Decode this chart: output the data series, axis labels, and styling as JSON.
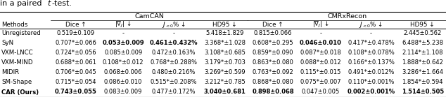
{
  "title_text": "in a paired ",
  "title_italic": "t",
  "title_end": "-test.",
  "group_labels": [
    "CamCAN",
    "CMRxRecon"
  ],
  "col_header_labels": [
    "Methods",
    "Dice ↑",
    "|\\u2207_J| ↓",
    "J_{<0}% ↓",
    "HD95 ↓",
    "Dice ↑",
    "|\\u2207_J| ↓",
    "J_{<0}% ↓",
    "HD95 ↓"
  ],
  "rows": [
    [
      "Unregistered",
      "0.519±0.109",
      "-",
      "-",
      "5.418±1.829",
      "0.815±0.066",
      "-",
      "-",
      "2.445±0.562"
    ],
    [
      "SyN",
      "0.707*±0.066",
      "B:0.053±0.009",
      "B:0.461±0.432%",
      "3.368*±1.028",
      "0.608*±0.295",
      "B:0.046±0.010",
      "0.417*±0.478%",
      "6.488*±5.238"
    ],
    [
      "VXM-LNCC",
      "0.724*±0.056",
      "0.085±0.009",
      "0.472±0.163%",
      "3.108*±0.685",
      "0.859*±0.090",
      "0.087*±0.018",
      "0.108*±0.078%",
      "2.114*±1.108"
    ],
    [
      "VXM-MIND",
      "0.688*±0.061",
      "0.108*±0.012",
      "0.768*±0.288%",
      "3.179*±0.703",
      "0.863*±0.080",
      "0.088*±0.012",
      "0.166*±0.137%",
      "1.888*±0.642"
    ],
    [
      "MIDIR",
      "0.706*±0.045",
      "0.068±0.006",
      "0.480±0.216%",
      "3.269*±0.599",
      "0.763*±0.092",
      "0.115*±0.015",
      "0.491*±0.012%",
      "3.286*±1.664"
    ],
    [
      "SM-Shape",
      "0.715*±0.054",
      "0.086±0.010",
      "0.515*±0.208%",
      "3.212*±0.785",
      "0.868*±0.080",
      "0.075*±0.007",
      "0.110*±0.001%",
      "1.854*±0.594"
    ],
    [
      "CAR (Ours)",
      "B:0.743±0.055",
      "0.083±0.009",
      "0.477±0.172%",
      "B:3.040±0.681",
      "B:0.898±0.068",
      "0.047±0.005",
      "B:0.002±0.001%",
      "B:1.514±0.505"
    ]
  ],
  "bold_last_row_method": true,
  "background_color": "#ffffff"
}
